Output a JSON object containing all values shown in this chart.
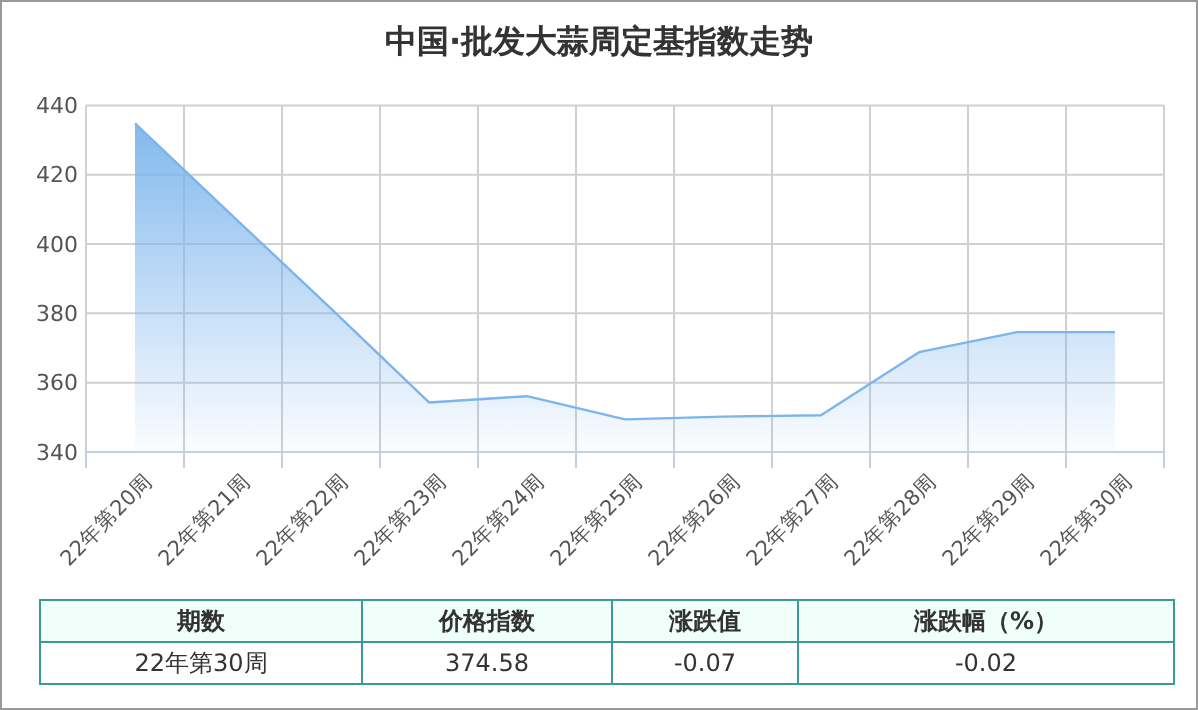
{
  "chart_data": {
    "type": "area",
    "title": "中国·批发大蒜周定基指数走势",
    "categories": [
      "22年第20周",
      "22年第21周",
      "22年第22周",
      "22年第23周",
      "22年第24周",
      "22年第25周",
      "22年第26周",
      "22年第27周",
      "22年第28周",
      "22年第29周",
      "22年第30周"
    ],
    "series": [
      {
        "color": "#7cb5ec",
        "values": [
          434.8,
          408.0,
          381.4,
          354.3,
          356.1,
          349.4,
          350.2,
          350.6,
          368.8,
          374.6,
          374.58
        ]
      }
    ],
    "ylim": [
      340,
      440
    ],
    "yticks": [
      340,
      360,
      380,
      400,
      420,
      440
    ],
    "grid": true,
    "annotations": [
      "期数",
      "价格指数",
      "涨跌值",
      "涨跌幅（%）",
      "22年第30周",
      "374.58",
      "-0.07",
      "-0.02"
    ]
  }
}
